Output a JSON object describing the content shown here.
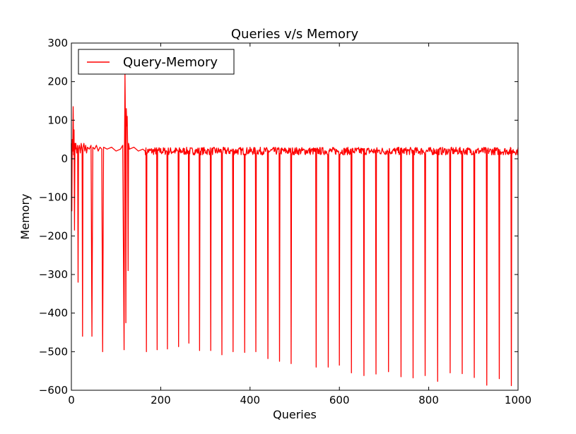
{
  "chart_data": {
    "type": "line",
    "title": "Queries v/s Memory",
    "xlabel": "Queries",
    "ylabel": "Memory",
    "xlim": [
      0,
      1000
    ],
    "ylim": [
      -600,
      300
    ],
    "xticks": [
      0,
      200,
      400,
      600,
      800,
      1000
    ],
    "yticks": [
      300,
      200,
      100,
      0,
      -100,
      -200,
      -300,
      -400,
      -500,
      -600
    ],
    "ytick_labels": [
      "300",
      "200",
      "100",
      "0",
      "−100",
      "−200",
      "−300",
      "−400",
      "−500",
      "−600"
    ],
    "grid": false,
    "legend_position": "top-left",
    "series": [
      {
        "name": "Query-Memory",
        "color": "#ff0000",
        "baseline": 20,
        "noise_amplitude": 10,
        "early_points": [
          [
            0,
            40
          ],
          [
            1,
            -135
          ],
          [
            2,
            50
          ],
          [
            3,
            20
          ],
          [
            4,
            135
          ],
          [
            5,
            10
          ],
          [
            6,
            75
          ],
          [
            7,
            -185
          ],
          [
            8,
            40
          ],
          [
            9,
            25
          ],
          [
            10,
            40
          ],
          [
            12,
            15
          ],
          [
            14,
            35
          ],
          [
            15,
            -320
          ],
          [
            16,
            25
          ],
          [
            18,
            35
          ],
          [
            20,
            15
          ],
          [
            22,
            40
          ],
          [
            24,
            20
          ],
          [
            25,
            -460
          ],
          [
            26,
            30
          ],
          [
            28,
            40
          ],
          [
            30,
            20
          ],
          [
            32,
            35
          ],
          [
            34,
            15
          ],
          [
            36,
            30
          ],
          [
            40,
            25
          ],
          [
            44,
            35
          ],
          [
            46,
            -460
          ],
          [
            48,
            30
          ],
          [
            52,
            25
          ],
          [
            56,
            35
          ],
          [
            60,
            20
          ],
          [
            64,
            30
          ],
          [
            68,
            25
          ],
          [
            70,
            -500
          ],
          [
            72,
            30
          ],
          [
            80,
            25
          ],
          [
            90,
            30
          ],
          [
            100,
            20
          ],
          [
            110,
            25
          ],
          [
            115,
            35
          ],
          [
            118,
            -495
          ],
          [
            119,
            30
          ],
          [
            120,
            220
          ],
          [
            121,
            80
          ],
          [
            122,
            -425
          ],
          [
            123,
            130
          ],
          [
            124,
            85
          ],
          [
            125,
            110
          ],
          [
            126,
            30
          ],
          [
            127,
            -290
          ],
          [
            128,
            40
          ],
          [
            130,
            25
          ],
          [
            140,
            30
          ],
          [
            150,
            20
          ],
          [
            160,
            25
          ],
          [
            165,
            20
          ]
        ],
        "dips": [
          [
            168,
            -500
          ],
          [
            192,
            -495
          ],
          [
            215,
            -493
          ],
          [
            240,
            -487
          ],
          [
            263,
            -478
          ],
          [
            287,
            -497
          ],
          [
            312,
            -497
          ],
          [
            337,
            -508
          ],
          [
            362,
            -500
          ],
          [
            388,
            -502
          ],
          [
            413,
            -500
          ],
          [
            440,
            -518
          ],
          [
            466,
            -525
          ],
          [
            492,
            -531
          ],
          [
            548,
            -540
          ],
          [
            575,
            -540
          ],
          [
            600,
            -535
          ],
          [
            627,
            -555
          ],
          [
            655,
            -562
          ],
          [
            682,
            -558
          ],
          [
            710,
            -552
          ],
          [
            738,
            -565
          ],
          [
            765,
            -568
          ],
          [
            792,
            -562
          ],
          [
            820,
            -577
          ],
          [
            848,
            -555
          ],
          [
            875,
            -557
          ],
          [
            902,
            -567
          ],
          [
            930,
            -587
          ],
          [
            958,
            -570
          ],
          [
            985,
            -588
          ]
        ]
      }
    ]
  }
}
